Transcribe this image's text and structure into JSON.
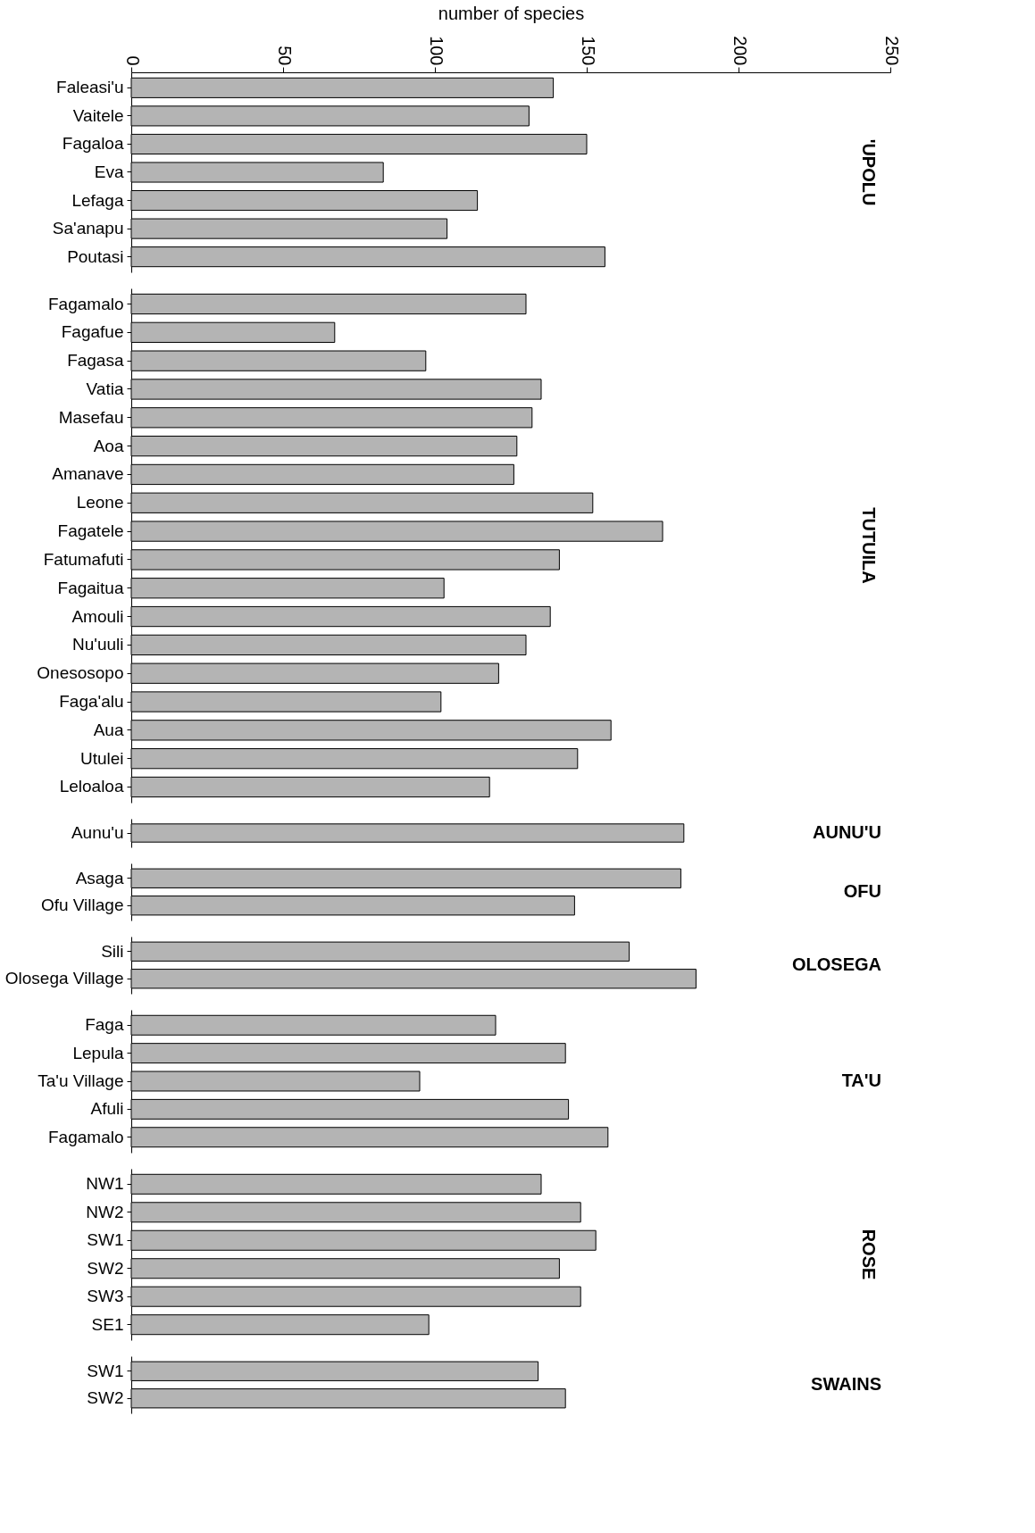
{
  "chart_data": [
    {
      "type": "bar",
      "orientation": "horizontal",
      "xlabel": "number of species",
      "xlim": [
        0,
        250
      ],
      "xticks": [
        0,
        50,
        100,
        150,
        200,
        250
      ],
      "color": "#b4b4b4",
      "annotations": [
        "'UPOLU"
      ],
      "categories": [
        "Faleasi'u",
        "Vaitele",
        "Fagaloa",
        "Eva",
        "Lefaga",
        "Sa'anapu",
        "Poutasi"
      ],
      "values": [
        139,
        131,
        150,
        83,
        114,
        104,
        156
      ]
    },
    {
      "type": "bar",
      "orientation": "horizontal",
      "xlim": [
        0,
        250
      ],
      "xticks": [
        0,
        50,
        100,
        150,
        200,
        250
      ],
      "tick_labels": "y",
      "color": "#b4b4b4",
      "annotations": [
        "TUTUILA"
      ],
      "categories": [
        "Fagamalo",
        "Fagafue",
        "Fagasa",
        "Vatia",
        "Masefau",
        "Aoa",
        "Amanave",
        "Leone",
        "Fagatele",
        "Fatumafuti",
        "Fagaitua",
        "Amouli",
        "Nu'uuli",
        "Onesosopo",
        "Faga'alu",
        "Aua",
        "Utulei",
        "Leloaloa"
      ],
      "values": [
        130,
        67,
        97,
        135,
        132,
        127,
        126,
        152,
        175,
        141,
        103,
        138,
        130,
        121,
        102,
        158,
        147,
        118
      ]
    },
    {
      "type": "bar",
      "orientation": "horizontal",
      "xlim": [
        0,
        250
      ],
      "xticks": [
        0,
        50,
        100,
        150,
        200,
        250
      ],
      "tick_labels": "y",
      "color": "#b4b4b4",
      "annotations": [
        "AUNU'U"
      ],
      "categories": [
        "Aunu'u"
      ],
      "values": [
        182
      ]
    },
    {
      "type": "bar",
      "orientation": "horizontal",
      "xlim": [
        0,
        250
      ],
      "xticks": [
        0,
        50,
        100,
        150,
        200,
        250
      ],
      "tick_labels": "y",
      "color": "#b4b4b4",
      "annotations": [
        "OFU"
      ],
      "categories": [
        "Asaga",
        "Ofu Village"
      ],
      "values": [
        181,
        146
      ]
    },
    {
      "type": "bar",
      "orientation": "horizontal",
      "xlim": [
        0,
        250
      ],
      "xticks": [
        0,
        50,
        100,
        150,
        200,
        250
      ],
      "tick_labels": "y",
      "color": "#b4b4b4",
      "annotations": [
        "OLOSEGA"
      ],
      "categories": [
        "Sili",
        "Olosega Village"
      ],
      "values": [
        164,
        186
      ]
    },
    {
      "type": "bar",
      "orientation": "horizontal",
      "xlim": [
        0,
        250
      ],
      "xticks": [
        0,
        50,
        100,
        150,
        200,
        250
      ],
      "tick_labels": "y",
      "color": "#b4b4b4",
      "annotations": [
        "TA'U"
      ],
      "categories": [
        "Faga",
        "Lepula",
        "Ta'u Village",
        "Afuli",
        "Fagamalo"
      ],
      "values": [
        120,
        143,
        95,
        144,
        157
      ]
    },
    {
      "type": "bar",
      "orientation": "horizontal",
      "xlim": [
        0,
        250
      ],
      "xticks": [
        0,
        50,
        100,
        150,
        200,
        250
      ],
      "tick_labels": "y",
      "color": "#b4b4b4",
      "annotations": [
        "ROSE"
      ],
      "categories": [
        "NW1",
        "NW2",
        "SW1",
        "SW2",
        "SW3",
        "SE1"
      ],
      "values": [
        135,
        148,
        153,
        141,
        148,
        98
      ]
    },
    {
      "type": "bar",
      "orientation": "horizontal",
      "xlim": [
        0,
        250
      ],
      "xticks": [
        0,
        50,
        100,
        150,
        200,
        250
      ],
      "tick_labels": "y",
      "color": "#b4b4b4",
      "annotations": [
        "SWAINS"
      ],
      "categories": [
        "SW1",
        "SW2"
      ],
      "values": [
        134,
        143
      ]
    }
  ]
}
